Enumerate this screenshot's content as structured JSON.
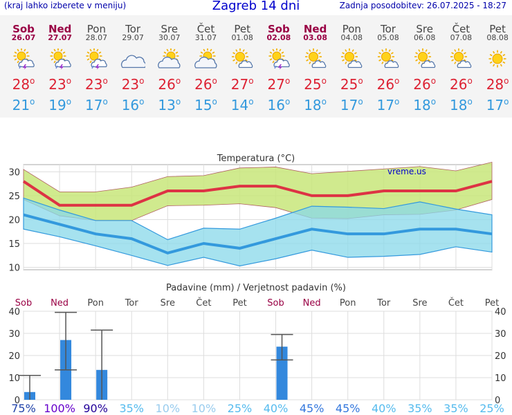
{
  "header": {
    "menu_hint": "(kraj lahko izberete v meniju)",
    "title": "Zagreb 14 dni",
    "updated": "Zadnja posodobitev: 26.07.2025 - 18:27"
  },
  "days": [
    {
      "day": "Sob",
      "date": "26.07",
      "weekend": true,
      "icon": "sun-cloud-thunder-icon",
      "max": "28",
      "min": "21"
    },
    {
      "day": "Ned",
      "date": "27.07",
      "weekend": true,
      "icon": "sun-cloud-thunder-icon",
      "max": "23",
      "min": "19"
    },
    {
      "day": "Pon",
      "date": "28.07",
      "weekend": false,
      "icon": "sun-cloud-thunder-icon",
      "max": "23",
      "min": "17"
    },
    {
      "day": "Tor",
      "date": "29.07",
      "weekend": false,
      "icon": "cloud-icon",
      "max": "23",
      "min": "16"
    },
    {
      "day": "Sre",
      "date": "30.07",
      "weekend": false,
      "icon": "sun-cloud-icon",
      "max": "26",
      "min": "13"
    },
    {
      "day": "Čet",
      "date": "31.07",
      "weekend": false,
      "icon": "sun-cloud-icon",
      "max": "26",
      "min": "15"
    },
    {
      "day": "Pet",
      "date": "01.08",
      "weekend": false,
      "icon": "sun-small-cloud-icon",
      "max": "27",
      "min": "14"
    },
    {
      "day": "Sob",
      "date": "02.08",
      "weekend": true,
      "icon": "sun-cloud-thunder-icon",
      "max": "27",
      "min": "16"
    },
    {
      "day": "Ned",
      "date": "03.08",
      "weekend": true,
      "icon": "sun-small-cloud-icon",
      "max": "25",
      "min": "18"
    },
    {
      "day": "Pon",
      "date": "04.08",
      "weekend": false,
      "icon": "sun-small-cloud-icon",
      "max": "25",
      "min": "17"
    },
    {
      "day": "Tor",
      "date": "05.08",
      "weekend": false,
      "icon": "sun-small-cloud-icon",
      "max": "26",
      "min": "17"
    },
    {
      "day": "Sre",
      "date": "06.08",
      "weekend": false,
      "icon": "sun-small-cloud-icon",
      "max": "26",
      "min": "18"
    },
    {
      "day": "Čet",
      "date": "07.08",
      "weekend": false,
      "icon": "sun-small-cloud-icon",
      "max": "26",
      "min": "18"
    },
    {
      "day": "Pet",
      "date": "08.08",
      "weekend": false,
      "icon": "sun-icon",
      "max": "28",
      "min": "17"
    }
  ],
  "colors": {
    "max_text": "#dd2233",
    "min_text": "#3399dd",
    "weekend": "#990044",
    "max_line": "#dd3344",
    "max_band": "#c8e67a",
    "min_line": "#3399dd",
    "min_band": "#88d8ea",
    "bar": "#3388dd"
  },
  "chart_data": [
    {
      "type": "line",
      "title": "Temperatura (°C)",
      "watermark": "vreme.us",
      "categories": [
        "Sob",
        "Ned",
        "Pon",
        "Tor",
        "Sre",
        "Čet",
        "Pet",
        "Sob",
        "Ned",
        "Pon",
        "Tor",
        "Sre",
        "Čet",
        "Pet"
      ],
      "ylim": [
        9.5,
        31.5
      ],
      "yticks": [
        10,
        15,
        20,
        25,
        30
      ],
      "grid": true,
      "series": [
        {
          "values": [
            28,
            23,
            23,
            23,
            26,
            26,
            27,
            27,
            25,
            25,
            26,
            26,
            26,
            28
          ]
        },
        {
          "values": [
            21,
            19,
            17,
            16,
            13,
            15,
            14,
            16,
            18,
            17,
            17,
            18,
            18,
            17
          ]
        }
      ],
      "max_band": {
        "upper": [
          30.5,
          25.8,
          25.8,
          26.8,
          29,
          29.2,
          30.8,
          31,
          29.6,
          30.1,
          30.6,
          31.1,
          30.2,
          32
        ],
        "lower": [
          24.2,
          20.8,
          19.8,
          19.8,
          22.9,
          23,
          23.3,
          22.5,
          20.3,
          20.2,
          21,
          21.1,
          22,
          24.2
        ]
      },
      "min_band": {
        "upper": [
          24.5,
          22,
          19.8,
          19.8,
          15.8,
          18.2,
          18,
          20.3,
          22.8,
          22.6,
          22.3,
          23.7,
          22.2,
          21
        ],
        "lower": [
          18,
          16.4,
          14.5,
          12.5,
          10.4,
          12.1,
          10.3,
          11.8,
          13.6,
          12.1,
          12.3,
          12.7,
          14.3,
          13.2
        ]
      }
    },
    {
      "type": "bar",
      "title": "Padavine (mm) / Verjetnost padavin (%)",
      "categories": [
        "Sob",
        "Ned",
        "Pon",
        "Tor",
        "Sre",
        "Čet",
        "Pet",
        "Sob",
        "Ned",
        "Pon",
        "Tor",
        "Sre",
        "Čet",
        "Pet"
      ],
      "ylim": [
        0,
        40
      ],
      "yticks": [
        0,
        10,
        20,
        30,
        40
      ],
      "values": [
        3.5,
        27,
        13.5,
        0,
        0,
        0,
        0,
        24,
        0,
        0,
        0,
        0,
        0,
        0
      ],
      "error_high": [
        11,
        39.5,
        31.5,
        null,
        null,
        null,
        null,
        29.5,
        null,
        null,
        null,
        null,
        null,
        null
      ],
      "error_low": [
        0,
        13.5,
        0,
        null,
        null,
        null,
        null,
        18,
        null,
        null,
        null,
        null,
        null,
        null
      ],
      "probability": [
        "75%",
        "100%",
        "90%",
        "35%",
        "10%",
        "10%",
        "25%",
        "40%",
        "45%",
        "45%",
        "40%",
        "35%",
        "35%",
        "25%"
      ],
      "probability_colors": [
        "#2244aa",
        "#6600cc",
        "#220099",
        "#55bbee",
        "#99ccee",
        "#99ccee",
        "#55bbee",
        "#55bbee",
        "#3377dd",
        "#3377dd",
        "#55bbee",
        "#55bbee",
        "#55bbee",
        "#55bbee"
      ]
    }
  ]
}
